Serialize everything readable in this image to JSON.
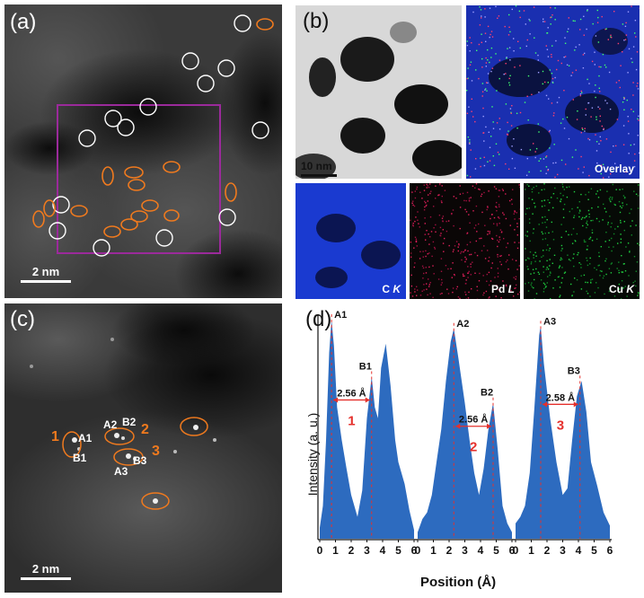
{
  "panel_a": {
    "label": "(a)",
    "scale_text": "2 nm",
    "white_circles": [
      [
        270,
        26
      ],
      [
        212,
        68
      ],
      [
        229,
        93
      ],
      [
        252,
        76
      ],
      [
        165,
        119
      ],
      [
        126,
        132
      ],
      [
        140,
        142
      ],
      [
        97,
        154
      ],
      [
        290,
        145
      ],
      [
        68,
        228
      ],
      [
        64,
        257
      ],
      [
        183,
        265
      ],
      [
        113,
        276
      ],
      [
        253,
        242
      ]
    ],
    "orange_ellipses": [
      [
        295,
        27,
        9,
        6,
        0
      ],
      [
        149,
        192,
        10,
        6,
        0
      ],
      [
        191,
        186,
        9,
        6,
        0
      ],
      [
        120,
        196,
        6,
        10,
        0
      ],
      [
        152,
        206,
        9,
        6,
        0
      ],
      [
        257,
        214,
        6,
        10,
        0
      ],
      [
        167,
        229,
        9,
        6,
        0
      ],
      [
        155,
        241,
        9,
        6,
        0
      ],
      [
        88,
        235,
        9,
        6,
        0
      ],
      [
        55,
        232,
        6,
        9,
        0
      ],
      [
        43,
        244,
        6,
        9,
        0
      ],
      [
        144,
        250,
        9,
        6,
        0
      ],
      [
        125,
        258,
        9,
        6,
        0
      ],
      [
        191,
        240,
        8,
        6,
        0
      ]
    ]
  },
  "panel_b": {
    "label": "(b)",
    "scale_text": "10 nm",
    "overlay_label": "Overlay",
    "maps": [
      {
        "name": "C",
        "suffix": "K",
        "color": "#1a3ad0"
      },
      {
        "name": "Pd",
        "suffix": "L",
        "color": "#e0205a"
      },
      {
        "name": "Cu",
        "suffix": "K",
        "color": "#20d040"
      }
    ]
  },
  "panel_c": {
    "label": "(c)",
    "scale_text": "2 nm",
    "groups": [
      {
        "number": "1",
        "a": "A1",
        "b": "B1"
      },
      {
        "number": "2",
        "a": "A2",
        "b": "B2"
      },
      {
        "number": "3",
        "a": "A3",
        "b": "B3"
      }
    ]
  },
  "chart_data": {
    "type": "area",
    "label": "(d)",
    "xlabel": "Position (Å)",
    "ylabel": "Intensity (a. u.)",
    "xlim": [
      0,
      6
    ],
    "x_ticks": [
      "0",
      "1",
      "2",
      "3",
      "4",
      "5",
      "6"
    ],
    "color": "#2d6bbf",
    "series": [
      {
        "number": "1",
        "peak_a": {
          "name": "A1",
          "x": 0.75
        },
        "peak_b": {
          "name": "B1",
          "x": 3.3
        },
        "distance": "2.56 Å",
        "points": [
          [
            0,
            0.05
          ],
          [
            0.2,
            0.15
          ],
          [
            0.4,
            0.45
          ],
          [
            0.6,
            0.85
          ],
          [
            0.75,
            1.0
          ],
          [
            0.9,
            0.88
          ],
          [
            1.1,
            0.6
          ],
          [
            1.4,
            0.45
          ],
          [
            1.7,
            0.32
          ],
          [
            2.0,
            0.2
          ],
          [
            2.4,
            0.1
          ],
          [
            2.7,
            0.22
          ],
          [
            3.0,
            0.55
          ],
          [
            3.3,
            0.74
          ],
          [
            3.5,
            0.6
          ],
          [
            3.7,
            0.55
          ],
          [
            3.9,
            0.78
          ],
          [
            4.2,
            0.89
          ],
          [
            4.5,
            0.7
          ],
          [
            4.8,
            0.45
          ],
          [
            5.0,
            0.35
          ],
          [
            5.4,
            0.25
          ],
          [
            5.7,
            0.13
          ],
          [
            6,
            0.04
          ]
        ]
      },
      {
        "number": "2",
        "peak_a": {
          "name": "A2",
          "x": 2.3
        },
        "peak_b": {
          "name": "B2",
          "x": 4.8
        },
        "distance": "2.56 Å",
        "points": [
          [
            0,
            0.03
          ],
          [
            0.3,
            0.09
          ],
          [
            0.6,
            0.12
          ],
          [
            0.9,
            0.2
          ],
          [
            1.2,
            0.35
          ],
          [
            1.5,
            0.5
          ],
          [
            1.8,
            0.72
          ],
          [
            2.1,
            0.9
          ],
          [
            2.3,
            0.96
          ],
          [
            2.6,
            0.82
          ],
          [
            3.0,
            0.62
          ],
          [
            3.3,
            0.45
          ],
          [
            3.6,
            0.3
          ],
          [
            3.9,
            0.2
          ],
          [
            4.2,
            0.32
          ],
          [
            4.5,
            0.5
          ],
          [
            4.8,
            0.62
          ],
          [
            5.1,
            0.4
          ],
          [
            5.4,
            0.15
          ],
          [
            5.7,
            0.07
          ],
          [
            6,
            0.03
          ]
        ]
      },
      {
        "number": "3",
        "peak_a": {
          "name": "A3",
          "x": 1.6
        },
        "peak_b": {
          "name": "B3",
          "x": 4.1
        },
        "distance": "2.58 Å",
        "points": [
          [
            0,
            0.07
          ],
          [
            0.3,
            0.1
          ],
          [
            0.6,
            0.15
          ],
          [
            0.9,
            0.3
          ],
          [
            1.2,
            0.6
          ],
          [
            1.5,
            0.93
          ],
          [
            1.6,
            0.97
          ],
          [
            1.8,
            0.8
          ],
          [
            2.2,
            0.55
          ],
          [
            2.6,
            0.35
          ],
          [
            3.0,
            0.2
          ],
          [
            3.3,
            0.23
          ],
          [
            3.6,
            0.45
          ],
          [
            3.9,
            0.65
          ],
          [
            4.2,
            0.72
          ],
          [
            4.5,
            0.58
          ],
          [
            4.8,
            0.35
          ],
          [
            5.2,
            0.24
          ],
          [
            5.6,
            0.12
          ],
          [
            6,
            0.06
          ]
        ]
      }
    ]
  }
}
